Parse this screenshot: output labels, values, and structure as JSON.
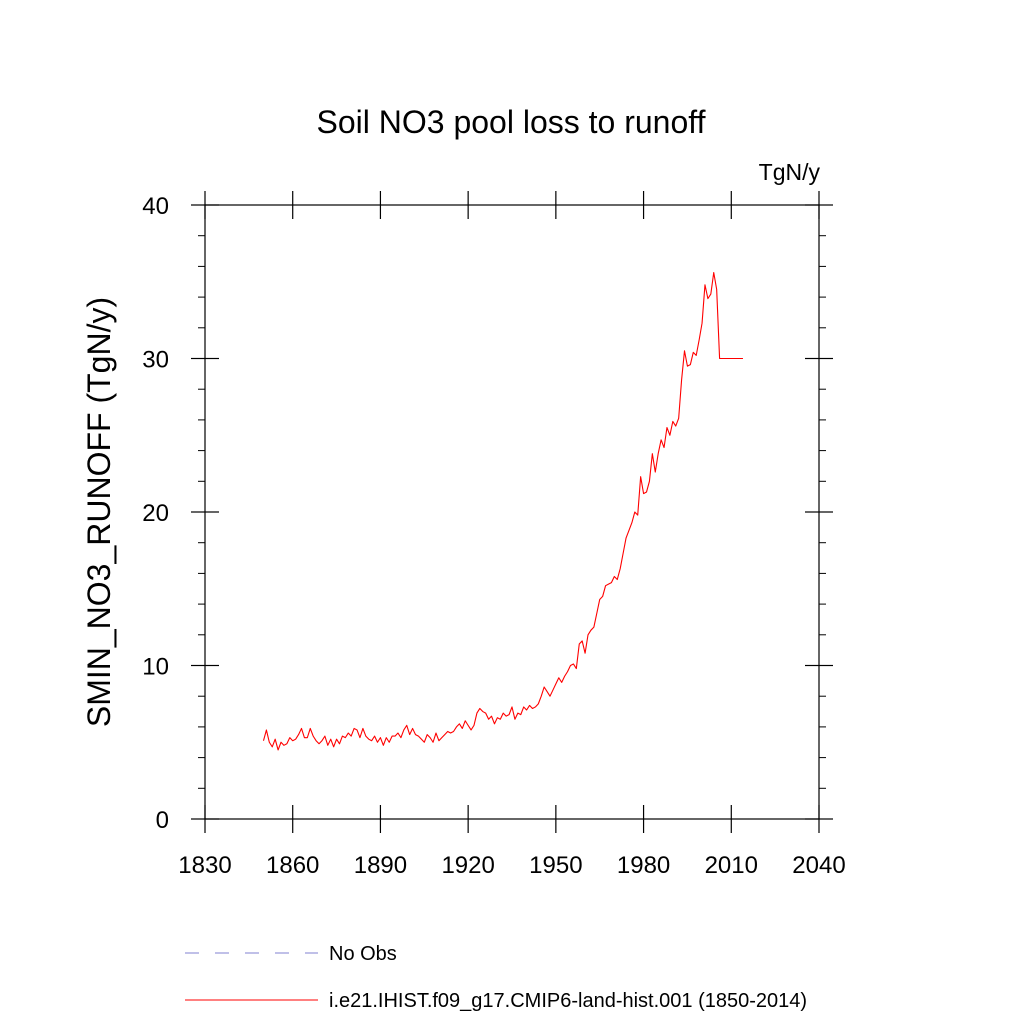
{
  "chart_data": {
    "type": "line",
    "title": "Soil NO3 pool loss to runoff",
    "units": "TgN/y",
    "ylabel": "SMIN_NO3_RUNOFF  (TgN/y)",
    "xlabel": "",
    "xlim": [
      1830,
      2040
    ],
    "ylim": [
      0,
      40
    ],
    "x_ticks": [
      1830,
      1860,
      1890,
      1920,
      1950,
      1980,
      2010,
      2040
    ],
    "y_ticks": [
      0,
      10,
      20,
      30,
      40
    ],
    "grid": false,
    "legend_position": "bottom",
    "legend": [
      {
        "label": "No Obs",
        "color": "#8080d0",
        "style": "dashed"
      },
      {
        "label": "i.e21.IHIST.f09_g17.CMIP6-land-hist.001 (1850-2014)",
        "color": "#ff0000",
        "style": "solid"
      }
    ],
    "series": [
      {
        "name": "i.e21.IHIST.f09_g17.CMIP6-land-hist.001 (1850-2014)",
        "color": "#ff0000",
        "x": [
          1850,
          1851,
          1852,
          1853,
          1854,
          1855,
          1856,
          1857,
          1858,
          1859,
          1860,
          1861,
          1862,
          1863,
          1864,
          1865,
          1866,
          1867,
          1868,
          1869,
          1870,
          1871,
          1872,
          1873,
          1874,
          1875,
          1876,
          1877,
          1878,
          1879,
          1880,
          1881,
          1882,
          1883,
          1884,
          1885,
          1886,
          1887,
          1888,
          1889,
          1890,
          1891,
          1892,
          1893,
          1894,
          1895,
          1896,
          1897,
          1898,
          1899,
          1900,
          1901,
          1902,
          1903,
          1904,
          1905,
          1906,
          1907,
          1908,
          1909,
          1910,
          1911,
          1912,
          1913,
          1914,
          1915,
          1916,
          1917,
          1918,
          1919,
          1920,
          1921,
          1922,
          1923,
          1924,
          1925,
          1926,
          1927,
          1928,
          1929,
          1930,
          1931,
          1932,
          1933,
          1934,
          1935,
          1936,
          1937,
          1938,
          1939,
          1940,
          1941,
          1942,
          1943,
          1944,
          1945,
          1946,
          1947,
          1948,
          1949,
          1950,
          1951,
          1952,
          1953,
          1954,
          1955,
          1956,
          1957,
          1958,
          1959,
          1960,
          1961,
          1962,
          1963,
          1964,
          1965,
          1966,
          1967,
          1968,
          1969,
          1970,
          1971,
          1972,
          1973,
          1974,
          1975,
          1976,
          1977,
          1978,
          1979,
          1980,
          1981,
          1982,
          1983,
          1984,
          1985,
          1986,
          1987,
          1988,
          1989,
          1990,
          1991,
          1992,
          1993,
          1994,
          1995,
          1996,
          1997,
          1998,
          1999,
          2000,
          2001,
          2002,
          2003,
          2004,
          2005,
          2006,
          2007,
          2008,
          2009,
          2010,
          2011,
          2012,
          2013,
          2014
        ],
        "y": [
          5.1,
          5.8,
          5.0,
          4.7,
          5.2,
          4.5,
          5.0,
          4.8,
          4.9,
          5.3,
          5.1,
          5.2,
          5.5,
          5.9,
          5.3,
          5.3,
          5.9,
          5.4,
          5.1,
          4.9,
          5.1,
          5.4,
          4.8,
          5.2,
          4.7,
          5.2,
          4.9,
          5.4,
          5.3,
          5.6,
          5.4,
          5.9,
          5.8,
          5.3,
          5.9,
          5.4,
          5.2,
          5.1,
          5.4,
          5.0,
          5.3,
          4.8,
          5.3,
          5.0,
          5.4,
          5.4,
          5.6,
          5.3,
          5.8,
          6.1,
          5.5,
          5.9,
          5.5,
          5.4,
          5.2,
          5.0,
          5.5,
          5.3,
          5.0,
          5.6,
          5.1,
          5.3,
          5.5,
          5.7,
          5.6,
          5.7,
          6.0,
          6.2,
          5.9,
          6.4,
          6.1,
          5.8,
          6.1,
          6.9,
          7.2,
          7.0,
          6.9,
          6.5,
          6.7,
          6.2,
          6.6,
          6.5,
          6.9,
          6.7,
          6.8,
          7.3,
          6.5,
          6.9,
          6.8,
          7.3,
          7.1,
          7.4,
          7.2,
          7.3,
          7.5,
          8.0,
          8.6,
          8.3,
          8.0,
          8.4,
          8.8,
          9.2,
          8.9,
          9.3,
          9.6,
          10.0,
          10.1,
          9.8,
          11.4,
          11.6,
          10.8,
          12.0,
          12.3,
          12.5,
          13.4,
          14.3,
          14.5,
          15.2,
          15.3,
          15.4,
          15.8,
          15.6,
          16.3,
          17.3,
          18.3,
          18.8,
          19.3,
          20.0,
          19.8,
          22.3,
          21.2,
          21.3,
          22.0,
          23.8,
          22.6,
          23.8,
          24.7,
          24.2,
          25.5,
          25.0,
          25.9,
          25.6,
          26.1,
          28.6,
          30.5,
          29.5,
          29.6,
          30.4,
          30.2,
          31.2,
          32.3,
          34.8,
          33.9,
          34.2,
          35.6,
          34.5,
          30.0,
          30.0,
          30.0,
          30.0,
          30.0,
          30.0,
          30.0,
          30.0,
          30.0
        ],
        "n_points": 165
      }
    ]
  }
}
